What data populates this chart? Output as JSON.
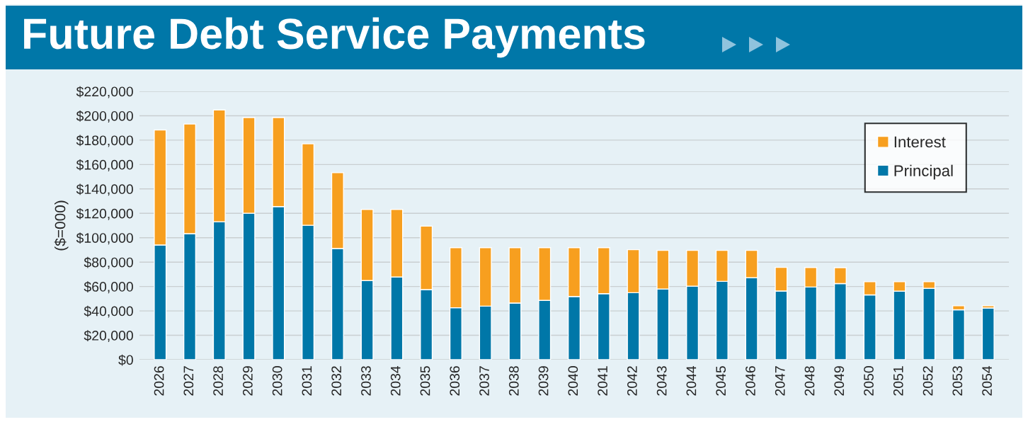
{
  "chart_data": {
    "type": "bar",
    "title": "Future Debt Service Payments",
    "ylabel": "($=000)",
    "categories": [
      "2026",
      "2027",
      "2028",
      "2029",
      "2030",
      "2031",
      "2032",
      "2033",
      "2034",
      "2035",
      "2036",
      "2037",
      "2038",
      "2039",
      "2040",
      "2041",
      "2042",
      "2043",
      "2044",
      "2045",
      "2046",
      "2047",
      "2048",
      "2049",
      "2050",
      "2051",
      "2052",
      "2053",
      "2054"
    ],
    "stacked": true,
    "series": [
      {
        "name": "Principal",
        "color": "#0077a8",
        "values": [
          94000,
          103300,
          113100,
          120100,
          125500,
          110200,
          91100,
          64900,
          67800,
          57500,
          42600,
          43900,
          46400,
          48600,
          51800,
          54100,
          54900,
          58000,
          60300,
          64200,
          67200,
          56300,
          59600,
          62400,
          53100,
          56200,
          58500,
          40900,
          42400
        ]
      },
      {
        "name": "Interest",
        "color": "#f79f1f",
        "values": [
          94400,
          89900,
          91700,
          78400,
          73000,
          66800,
          62200,
          58300,
          55400,
          52000,
          49300,
          48000,
          45500,
          43300,
          40100,
          37800,
          35300,
          31600,
          29300,
          25400,
          22400,
          19400,
          16000,
          13100,
          10800,
          7700,
          5400,
          3300,
          1800
        ]
      }
    ],
    "ylim": [
      0,
      220000
    ],
    "yticks": [
      {
        "value": 0,
        "label": "$0"
      },
      {
        "value": 20000,
        "label": "$20,000"
      },
      {
        "value": 40000,
        "label": "$40,000"
      },
      {
        "value": 60000,
        "label": "$60,000"
      },
      {
        "value": 80000,
        "label": "$80,000"
      },
      {
        "value": 100000,
        "label": "$100,000"
      },
      {
        "value": 120000,
        "label": "$120,000"
      },
      {
        "value": 140000,
        "label": "$140,000"
      },
      {
        "value": 160000,
        "label": "$160,000"
      },
      {
        "value": 180000,
        "label": "$180,000"
      },
      {
        "value": 200000,
        "label": "$200,000"
      },
      {
        "value": 220000,
        "label": "$220,000"
      }
    ],
    "grid": "y",
    "legend": "top right"
  }
}
